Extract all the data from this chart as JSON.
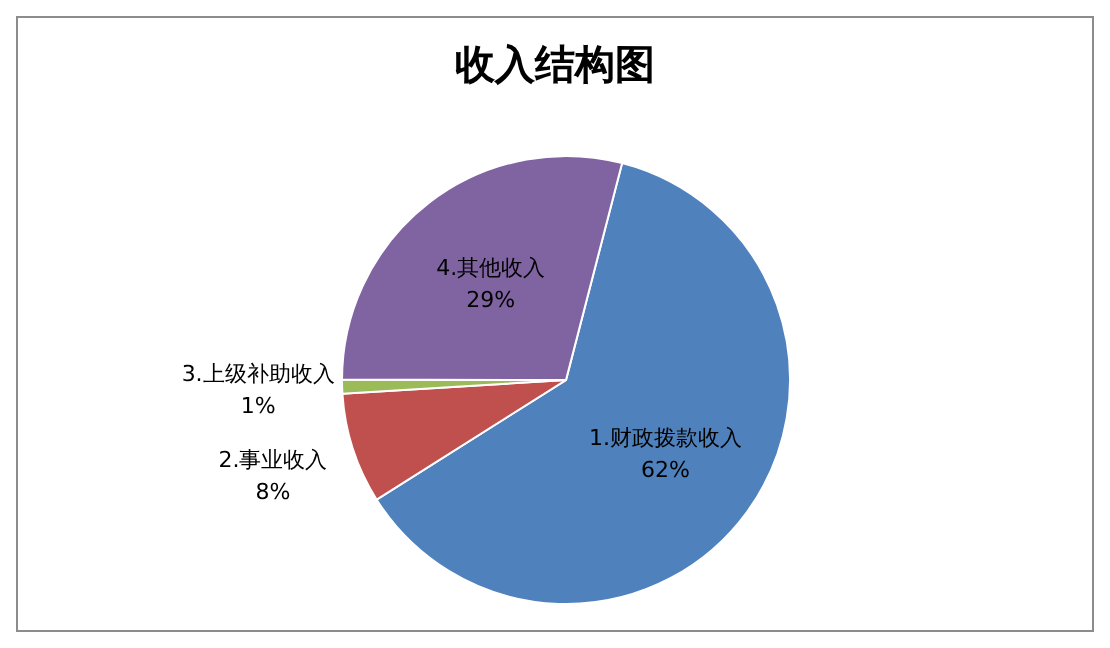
{
  "chart_data": {
    "type": "pie",
    "title": "收入结构图",
    "categories": [
      "1.财政拨款收入",
      "2.事业收入",
      "3.上级补助收入",
      "4.其他收入"
    ],
    "values": [
      62,
      8,
      1,
      29
    ],
    "colors": [
      "#4f81bd",
      "#c0504d",
      "#9bbb59",
      "#8064a2"
    ],
    "value_labels": [
      "62%",
      "8%",
      "1%",
      "29%"
    ]
  }
}
